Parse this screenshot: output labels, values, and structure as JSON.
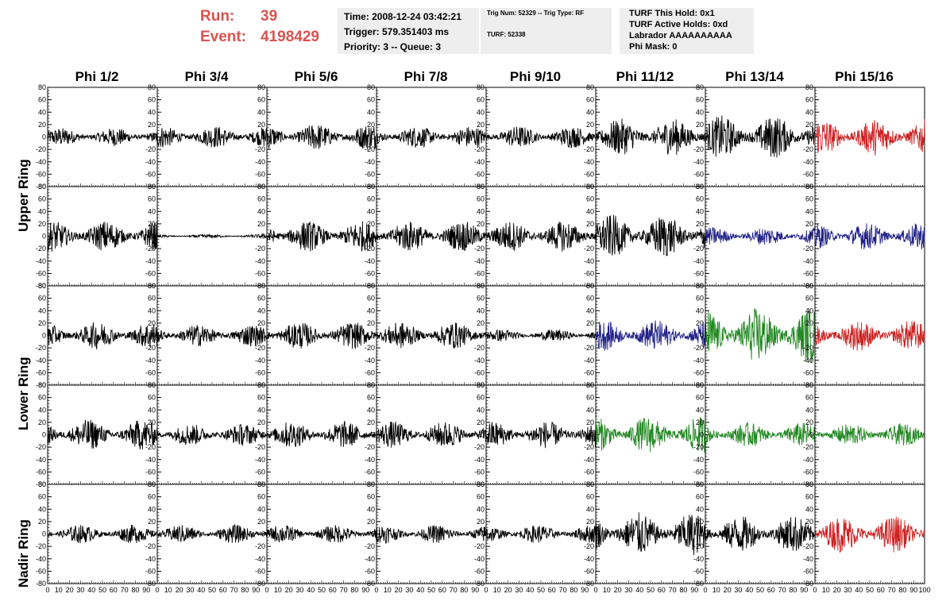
{
  "run_label": "Run:",
  "run_value": "39",
  "event_label": "Event:",
  "event_value": "4198429",
  "time": "Time: 2008-12-24 03:42:21",
  "trigger": "Trigger: 579.351403 ms",
  "priority": "Priority: 3 -- Queue: 3",
  "trig_num": "Trig Num: 52329 -- Trig Type: RF",
  "turf": "TURF: 52338",
  "turf_this_hold": "TURF This Hold: 0x1",
  "turf_active_holds": "TURF Active Holds: 0xd",
  "labrador": "Labrador AAAAAAAAAA",
  "phi_mask": "Phi Mask: 0",
  "columns": [
    "Phi 1/2",
    "Phi 3/4",
    "Phi 5/6",
    "Phi 7/8",
    "Phi 9/10",
    "Phi 11/12",
    "Phi 13/14",
    "Phi 15/16"
  ],
  "row_labels": [
    "Upper Ring",
    "Lower Ring",
    "Nadir Ring"
  ],
  "colors": {
    "black": "#000000",
    "red": "#cc2222",
    "blue": "#222288",
    "green": "#228822",
    "title_red": "#d9534f"
  },
  "chart_data": {
    "type": "line",
    "grid": "8 columns x 5 rows of waveform panels",
    "ylim": [
      -80,
      80
    ],
    "xlim": [
      0,
      100
    ],
    "y_ticks": [
      -80,
      -60,
      -40,
      -20,
      0,
      20,
      40,
      60,
      80
    ],
    "x_ticks": [
      0,
      10,
      20,
      30,
      40,
      50,
      60,
      70,
      80,
      90,
      100
    ],
    "x_tick_labels": [
      "0",
      "10",
      "20",
      "30",
      "40",
      "50",
      "60",
      "70",
      "80",
      "90",
      "100"
    ],
    "panel_amplitude": [
      [
        15,
        18,
        22,
        18,
        18,
        30,
        35,
        30
      ],
      [
        25,
        3,
        25,
        25,
        25,
        35,
        15,
        22
      ],
      [
        22,
        18,
        22,
        22,
        10,
        25,
        45,
        25
      ],
      [
        25,
        18,
        22,
        22,
        22,
        30,
        20,
        18
      ],
      [
        15,
        15,
        15,
        15,
        15,
        35,
        30,
        30
      ]
    ],
    "panel_colors": [
      [
        "black",
        "black",
        "black",
        "black",
        "black",
        "black",
        "black",
        "red"
      ],
      [
        "black",
        "black",
        "black",
        "black",
        "black",
        "black",
        "blue",
        "blue"
      ],
      [
        "black",
        "black",
        "black",
        "black",
        "black",
        "blue",
        "green",
        "red"
      ],
      [
        "black",
        "black",
        "black",
        "black",
        "black",
        "green",
        "green",
        "green"
      ],
      [
        "black",
        "black",
        "black",
        "black",
        "black",
        "black",
        "black",
        "red"
      ]
    ]
  }
}
